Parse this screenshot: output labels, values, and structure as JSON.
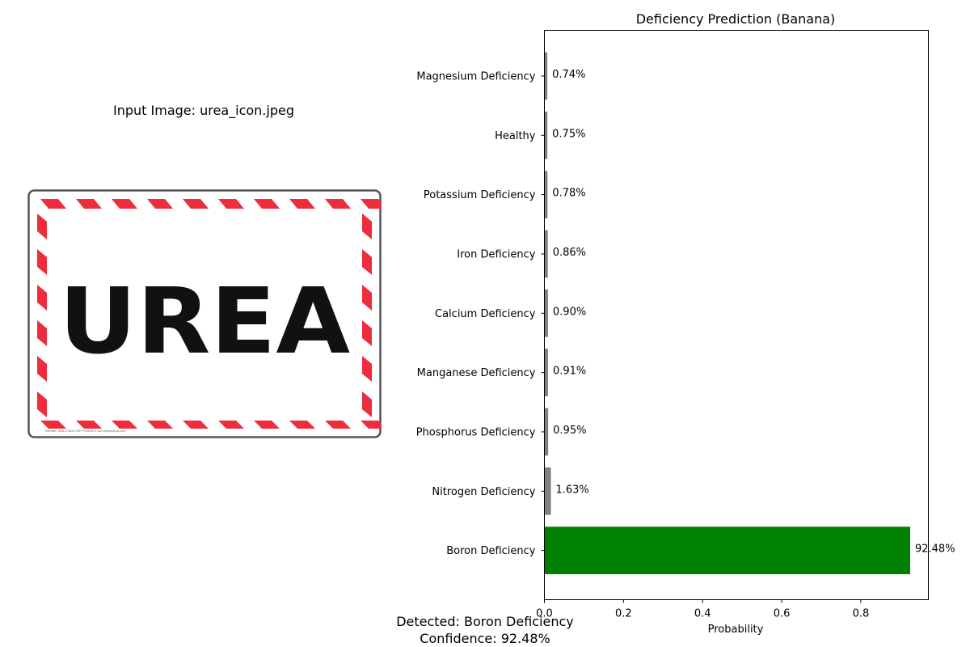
{
  "input_panel": {
    "title": "Input Image: urea_icon.jpeg",
    "sign_text": "UREA",
    "sign_fineprint": "Reorder: SGN-ST4DL-URFI Printed in usa  salesspend.com",
    "colors": {
      "stripe": "#ee2c3c",
      "frame": "#555555",
      "text": "#111111"
    }
  },
  "chart_data": {
    "type": "bar",
    "orientation": "horizontal",
    "title": "Deficiency Prediction (Banana)",
    "xlabel": "Probability",
    "ylabel": "",
    "xlim": [
      0,
      0.9708
    ],
    "xticks": [
      0.0,
      0.2,
      0.4,
      0.6,
      0.8
    ],
    "xtick_labels": [
      "0.0",
      "0.2",
      "0.4",
      "0.6",
      "0.8"
    ],
    "categories": [
      "Boron Deficiency",
      "Nitrogen Deficiency",
      "Phosphorus Deficiency",
      "Manganese Deficiency",
      "Calcium Deficiency",
      "Iron Deficiency",
      "Potassium Deficiency",
      "Healthy",
      "Magnesium Deficiency"
    ],
    "values": [
      0.9248,
      0.0163,
      0.0095,
      0.0091,
      0.009,
      0.0086,
      0.0078,
      0.0075,
      0.0074
    ],
    "value_labels": [
      "92.48%",
      "1.63%",
      "0.95%",
      "0.91%",
      "0.90%",
      "0.86%",
      "0.78%",
      "0.75%",
      "0.74%"
    ],
    "colors": [
      "#008000",
      "#808080",
      "#808080",
      "#808080",
      "#808080",
      "#808080",
      "#808080",
      "#808080",
      "#808080"
    ],
    "grid": false
  },
  "result": {
    "detected": "Detected: Boron Deficiency",
    "confidence": "Confidence: 92.48%"
  }
}
